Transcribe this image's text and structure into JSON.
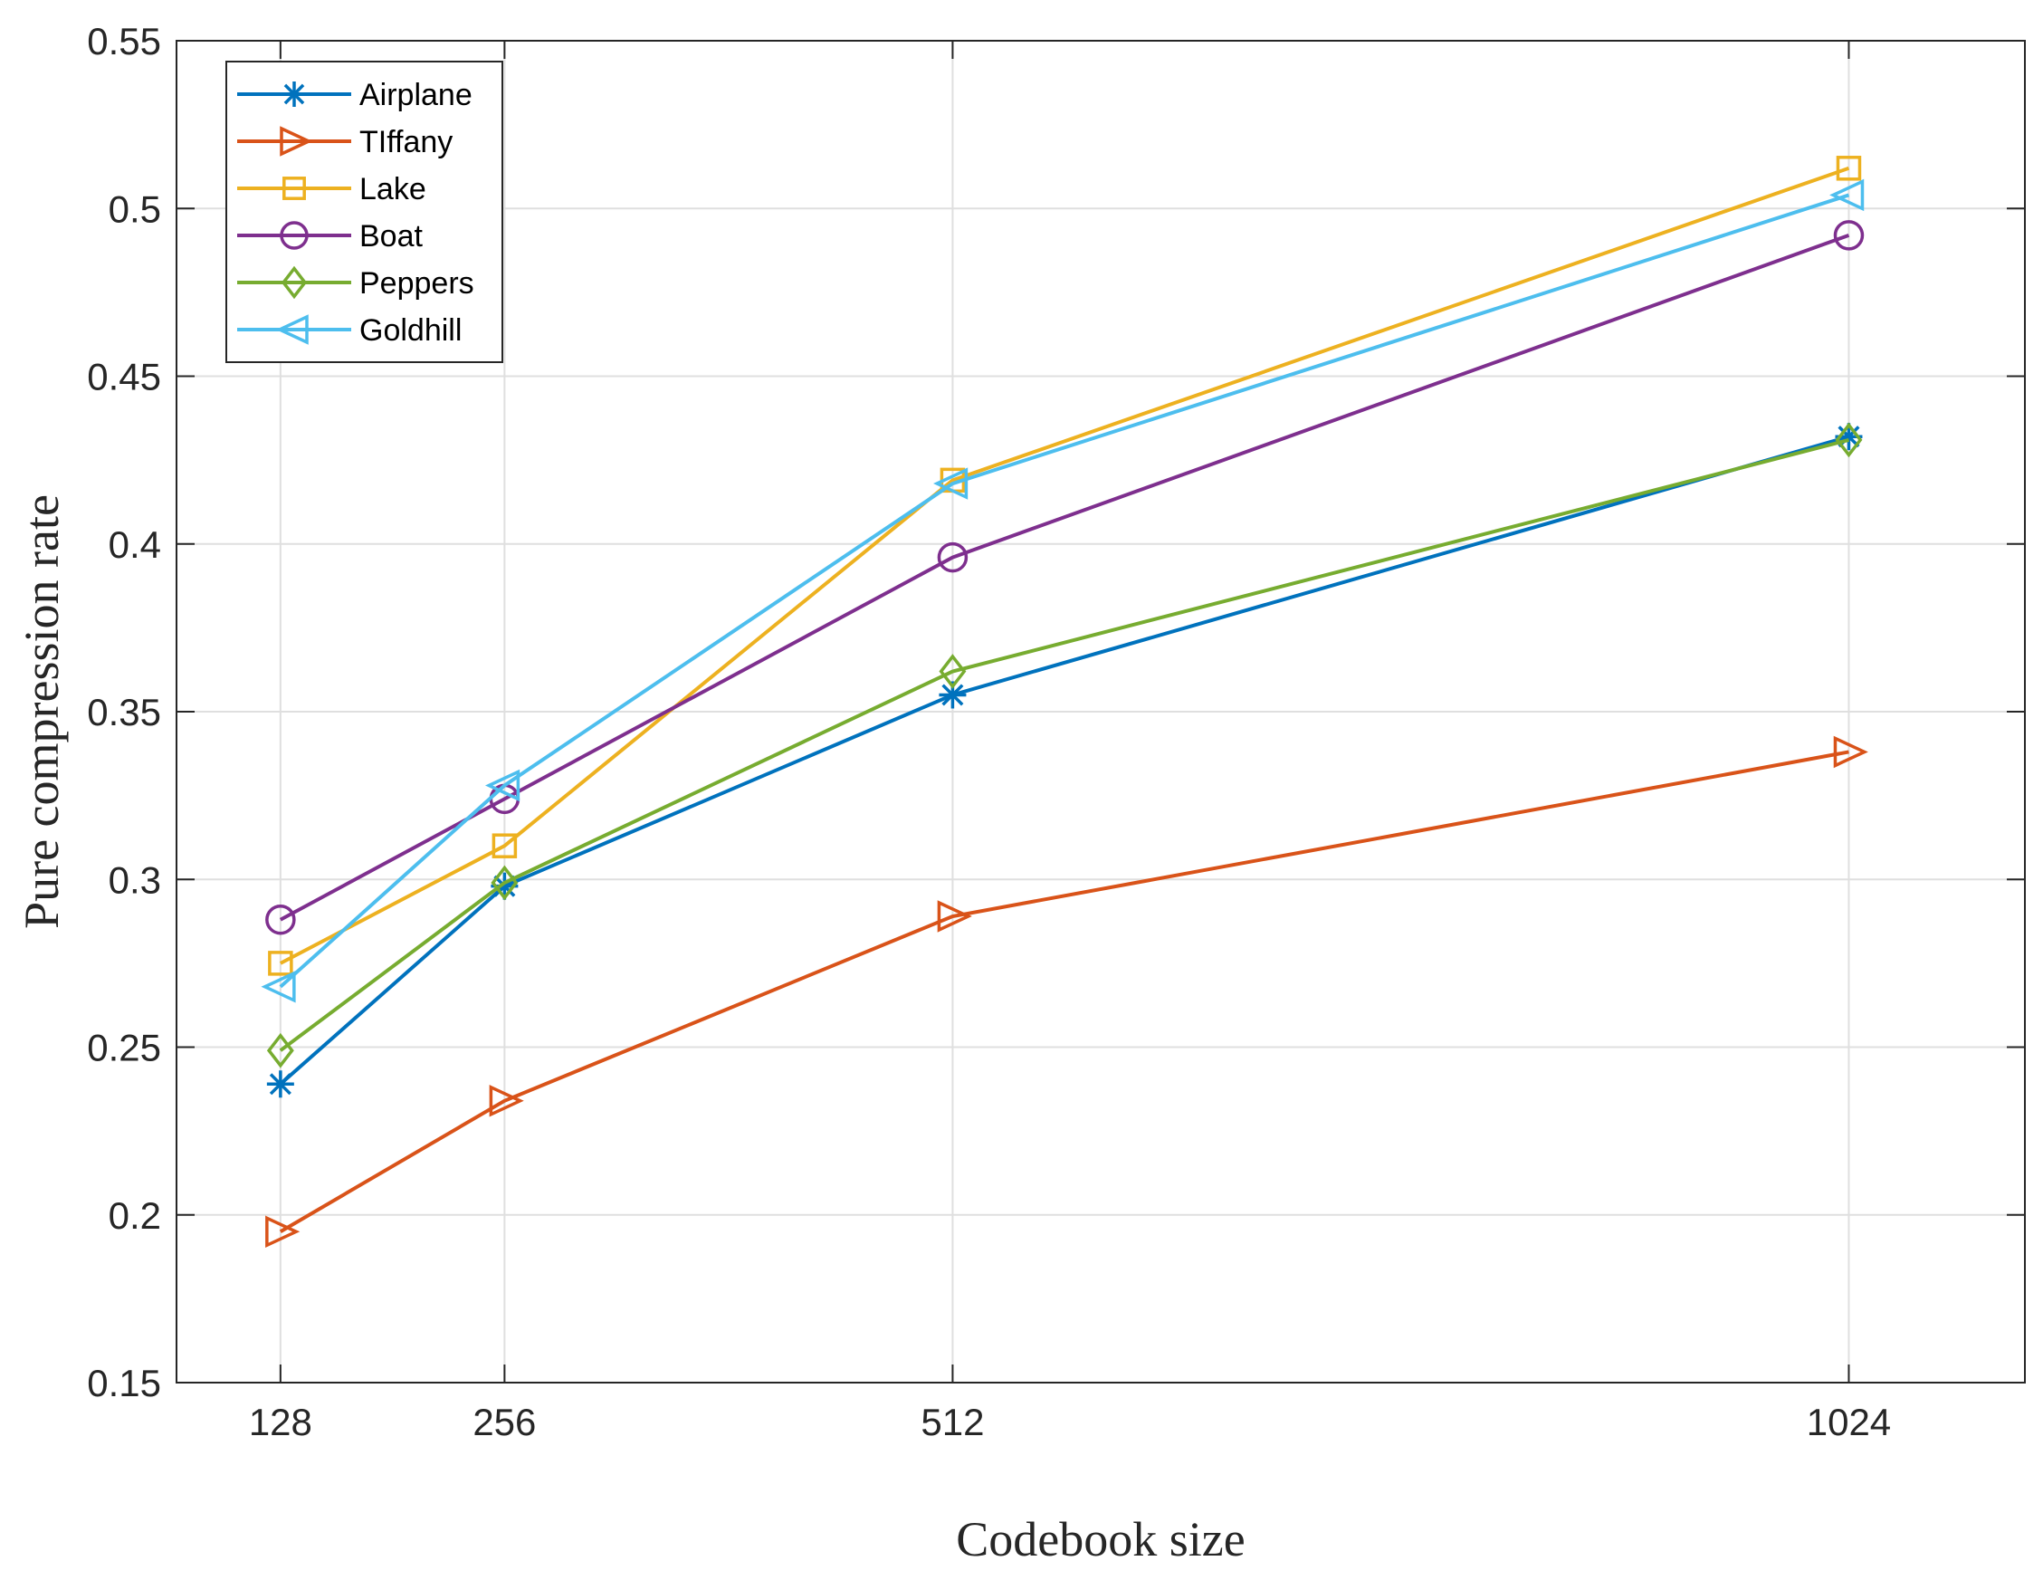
{
  "chart_data": {
    "type": "line",
    "title": "",
    "xlabel": "Codebook size",
    "ylabel": "Pure compression rate",
    "x": [
      128,
      256,
      512,
      1024
    ],
    "x_tick_labels": [
      "128",
      "256",
      "512",
      "1024"
    ],
    "ylim": [
      0.15,
      0.55
    ],
    "y_ticks": [
      0.15,
      0.2,
      0.25,
      0.3,
      0.35,
      0.4,
      0.45,
      0.5,
      0.55
    ],
    "y_tick_labels": [
      "0.15",
      "0.2",
      "0.25",
      "0.3",
      "0.35",
      "0.4",
      "0.45",
      "0.5",
      "0.55"
    ],
    "grid": true,
    "legend_position": "top-left",
    "series": [
      {
        "name": "Airplane",
        "marker": "asterisk",
        "color": "#0072BD",
        "values": [
          0.239,
          0.298,
          0.355,
          0.432
        ]
      },
      {
        "name": "TIffany",
        "marker": "triangle-right",
        "color": "#D95319",
        "values": [
          0.195,
          0.234,
          0.289,
          0.338
        ]
      },
      {
        "name": "Lake",
        "marker": "square",
        "color": "#EDB120",
        "values": [
          0.275,
          0.31,
          0.419,
          0.512
        ]
      },
      {
        "name": "Boat",
        "marker": "circle",
        "color": "#7E2F8E",
        "values": [
          0.288,
          0.324,
          0.396,
          0.492
        ]
      },
      {
        "name": "Peppers",
        "marker": "diamond",
        "color": "#77AC30",
        "values": [
          0.249,
          0.299,
          0.362,
          0.431
        ]
      },
      {
        "name": "Goldhill",
        "marker": "triangle-left",
        "color": "#4DBEEE",
        "values": [
          0.268,
          0.328,
          0.418,
          0.504
        ]
      }
    ]
  }
}
